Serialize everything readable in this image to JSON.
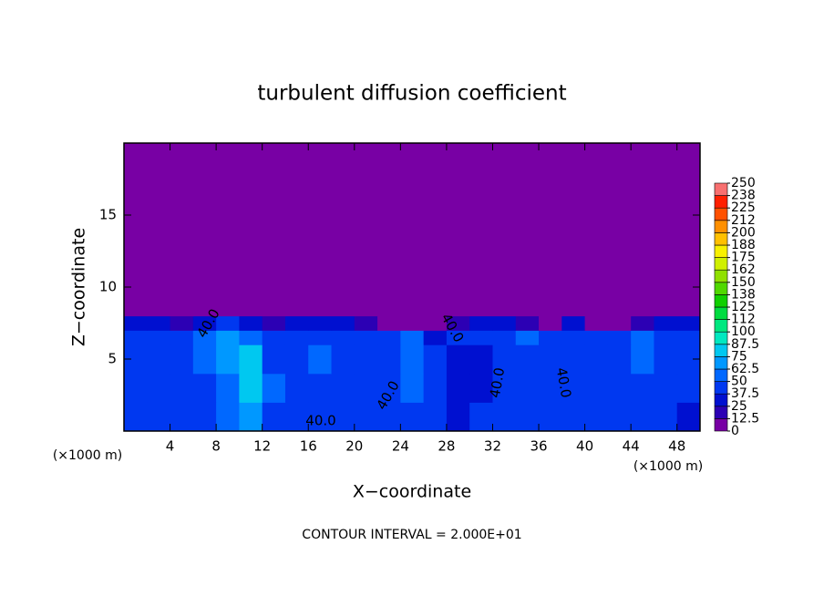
{
  "chart_data": {
    "type": "heatmap",
    "title": "turbulent diffusion coefficient",
    "xlabel": "X−coordinate",
    "ylabel": "Z−coordinate",
    "y_unit_label": "(×1000 m)",
    "x_unit_label": "(×1000 m)",
    "footnote": "CONTOUR INTERVAL = 2.000E+01",
    "annotations": [
      "40.0",
      "40.0",
      "40.0",
      "40.0",
      "40.0",
      "40.0"
    ],
    "xlim": [
      0,
      50
    ],
    "ylim": [
      0,
      20
    ],
    "xticks": [
      4,
      8,
      12,
      16,
      20,
      24,
      28,
      32,
      36,
      40,
      44,
      48
    ],
    "yticks": [
      5,
      10,
      15
    ],
    "xbins": [
      0,
      2,
      4,
      6,
      8,
      10,
      12,
      14,
      16,
      18,
      20,
      22,
      24,
      26,
      28,
      30,
      32,
      34,
      36,
      38,
      40,
      42,
      44,
      46,
      48,
      50
    ],
    "ybins": [
      0,
      2,
      4,
      6,
      7,
      8,
      20
    ],
    "values": [
      [
        38,
        40,
        42,
        45,
        55,
        70,
        45,
        40,
        42,
        44,
        40,
        38,
        40,
        38,
        36,
        38,
        40,
        40,
        38,
        40,
        42,
        45,
        40,
        38,
        36
      ],
      [
        40,
        38,
        40,
        48,
        60,
        85,
        50,
        42,
        45,
        40,
        38,
        42,
        50,
        38,
        36,
        36,
        42,
        44,
        40,
        42,
        48,
        40,
        44,
        40,
        38
      ],
      [
        42,
        44,
        46,
        52,
        70,
        80,
        48,
        44,
        50,
        46,
        40,
        44,
        60,
        38,
        34,
        36,
        40,
        48,
        42,
        46,
        44,
        40,
        50,
        42,
        40
      ],
      [
        44,
        40,
        42,
        50,
        65,
        60,
        46,
        44,
        48,
        45,
        42,
        45,
        55,
        36,
        38,
        40,
        44,
        50,
        40,
        44,
        46,
        38,
        52,
        44,
        42
      ],
      [
        30,
        25,
        20,
        35,
        40,
        30,
        20,
        25,
        30,
        30,
        20,
        10,
        0,
        0,
        20,
        25,
        30,
        20,
        10,
        30,
        0,
        10,
        20,
        30,
        25
      ],
      [
        0,
        0,
        0,
        0,
        0,
        0,
        0,
        0,
        0,
        0,
        0,
        0,
        0,
        0,
        0,
        0,
        0,
        0,
        0,
        0,
        0,
        0,
        0,
        0,
        0
      ]
    ],
    "colorbar": {
      "ticks": [
        0,
        12.5,
        25,
        37.5,
        50,
        62.5,
        75,
        87.5,
        100,
        {
          "value": 112.5,
          "label": "112"
        },
        125,
        {
          "value": 137.5,
          "label": "138"
        },
        150,
        {
          "value": 162.5,
          "label": "162"
        },
        175,
        {
          "value": 187.5,
          "label": "188"
        },
        200,
        {
          "value": 212.5,
          "label": "212"
        },
        225,
        {
          "value": 237.5,
          "label": "238"
        },
        250
      ],
      "colors": [
        "#7800a4",
        "#2c00b4",
        "#0010d0",
        "#0038f0",
        "#0068ff",
        "#0098ff",
        "#00c8f0",
        "#00e8c0",
        "#00e880",
        "#00dc40",
        "#10d000",
        "#50d800",
        "#90e000",
        "#d0f000",
        "#f8f000",
        "#ffc000",
        "#ff9000",
        "#ff5000",
        "#ff2000",
        "#f87070"
      ]
    }
  }
}
